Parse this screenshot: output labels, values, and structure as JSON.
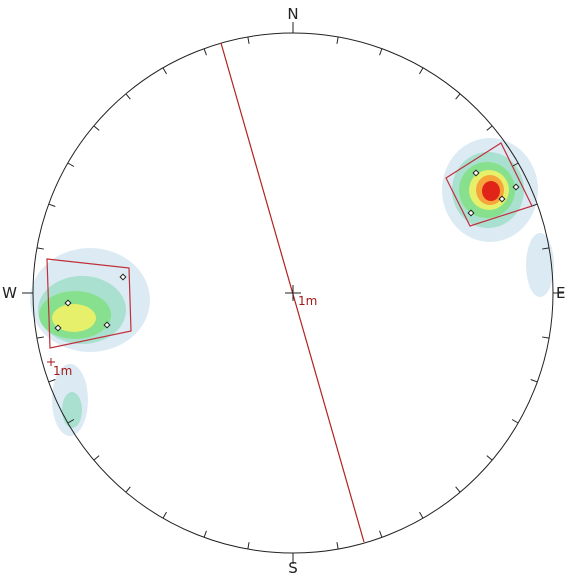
{
  "stereonet": {
    "labels": {
      "north": "N",
      "south": "S",
      "west": "W",
      "east": "E"
    },
    "center_annotation": "1m",
    "west_annotation": "1m",
    "colors": {
      "primitive_circle": "#222222",
      "great_circle": "#b22222",
      "window_outline": "#c0303a",
      "contour_low": "#dcebf3",
      "contour_mid": "#a9e0cf",
      "contour_green": "#86e08e",
      "contour_yellow": "#e6f06a",
      "contour_orange": "#f7a53a",
      "contour_red": "#e02418"
    }
  }
}
